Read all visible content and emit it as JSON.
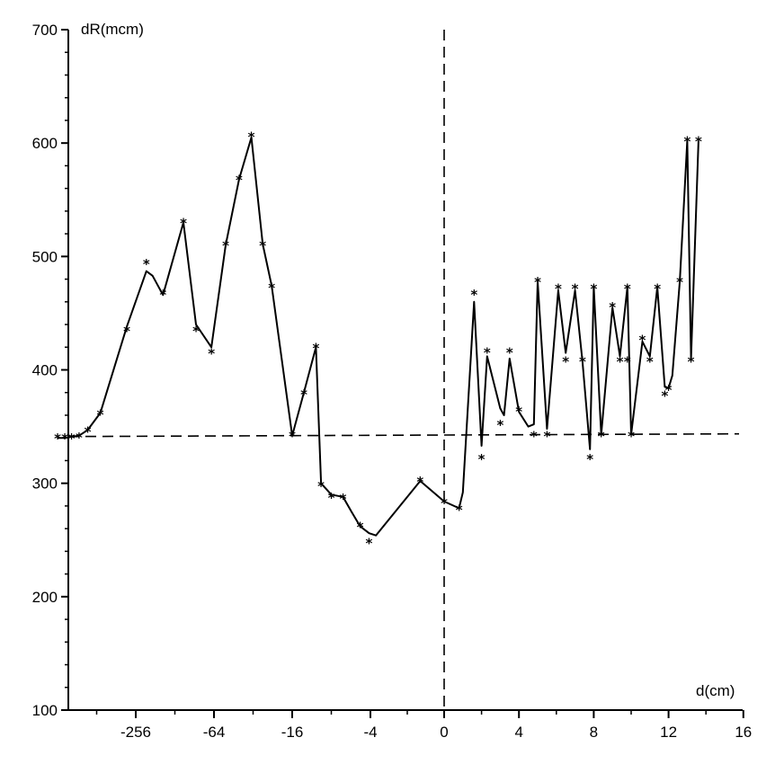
{
  "chart_data": {
    "type": "line",
    "ylabel": "dR(mcm)",
    "xlabel": "d(cm)",
    "ylim": [
      100,
      700
    ],
    "yticks": [
      100,
      200,
      300,
      400,
      500,
      600,
      700
    ],
    "xticks": [
      "-256",
      "-64",
      "-16",
      "-4",
      "0",
      "4",
      "8",
      "12",
      "16"
    ],
    "xtick_values": [
      -256,
      -64,
      -16,
      -4,
      0,
      4,
      8,
      12,
      16
    ],
    "x_scale": "symmetric log (negative side logarithmic, positive side linear)",
    "grid": false,
    "reference_lines": {
      "horizontal_y": 342,
      "vertical_x": 0
    },
    "series": [
      {
        "marker": "*",
        "line_points": [
          [
            -1024,
            340
          ],
          [
            -900,
            340
          ],
          [
            -800,
            341
          ],
          [
            -700,
            342
          ],
          [
            -600,
            347
          ],
          [
            -480,
            362
          ],
          [
            -300,
            438
          ],
          [
            -212,
            487
          ],
          [
            -190,
            483
          ],
          [
            -158,
            466
          ],
          [
            -110,
            530
          ],
          [
            -88,
            440
          ],
          [
            -67,
            420
          ],
          [
            -52,
            510
          ],
          [
            -41,
            568
          ],
          [
            -33,
            605
          ],
          [
            -27,
            511
          ],
          [
            -23,
            474
          ],
          [
            -16,
            342
          ],
          [
            -13,
            380
          ],
          [
            -10.5,
            420
          ],
          [
            -9.6,
            300
          ],
          [
            -8,
            290
          ],
          [
            -6.5,
            288
          ],
          [
            -5.6,
            275
          ],
          [
            -4.8,
            262
          ],
          [
            -4.1,
            256
          ],
          [
            -3.7,
            254
          ],
          [
            -1.3,
            302
          ],
          [
            0,
            284
          ],
          [
            0.8,
            278
          ],
          [
            1.0,
            292
          ],
          [
            1.6,
            460
          ],
          [
            2.0,
            333
          ],
          [
            2.3,
            412
          ],
          [
            3.0,
            366
          ],
          [
            3.2,
            360
          ],
          [
            3.5,
            410
          ],
          [
            4.0,
            363
          ],
          [
            4.5,
            350
          ],
          [
            4.8,
            352
          ],
          [
            5.0,
            478
          ],
          [
            5.5,
            348
          ],
          [
            6.1,
            470
          ],
          [
            6.5,
            415
          ],
          [
            7.0,
            470
          ],
          [
            7.4,
            407
          ],
          [
            7.8,
            330
          ],
          [
            8.0,
            473
          ],
          [
            8.4,
            343
          ],
          [
            9.0,
            455
          ],
          [
            9.4,
            412
          ],
          [
            9.8,
            473
          ],
          [
            10.0,
            343
          ],
          [
            10.6,
            425
          ],
          [
            11.0,
            412
          ],
          [
            11.4,
            473
          ],
          [
            11.8,
            385
          ],
          [
            12.0,
            384
          ],
          [
            12.2,
            395
          ],
          [
            12.6,
            478
          ],
          [
            13.0,
            602
          ],
          [
            13.2,
            410
          ],
          [
            13.6,
            602
          ]
        ],
        "marker_points": [
          [
            -1024,
            340
          ],
          [
            -900,
            340
          ],
          [
            -800,
            340
          ],
          [
            -700,
            341
          ],
          [
            -600,
            346
          ],
          [
            -480,
            361
          ],
          [
            -300,
            435
          ],
          [
            -212,
            494
          ],
          [
            -158,
            467
          ],
          [
            -110,
            530
          ],
          [
            -88,
            435
          ],
          [
            -67,
            415
          ],
          [
            -52,
            510
          ],
          [
            -41,
            568
          ],
          [
            -33,
            606
          ],
          [
            -27,
            510
          ],
          [
            -23,
            473
          ],
          [
            -16,
            342
          ],
          [
            -13,
            379
          ],
          [
            -10.5,
            420
          ],
          [
            -9.6,
            298
          ],
          [
            -8,
            288
          ],
          [
            -6.5,
            287
          ],
          [
            -4.8,
            262
          ],
          [
            -4.1,
            248
          ],
          [
            -1.3,
            302
          ],
          [
            0,
            283
          ],
          [
            0.8,
            277
          ],
          [
            1.6,
            467
          ],
          [
            2.0,
            322
          ],
          [
            2.3,
            416
          ],
          [
            3.0,
            352
          ],
          [
            3.5,
            416
          ],
          [
            4.0,
            364
          ],
          [
            4.8,
            342
          ],
          [
            5.0,
            478
          ],
          [
            5.5,
            342
          ],
          [
            6.1,
            472
          ],
          [
            6.5,
            408
          ],
          [
            7.0,
            472
          ],
          [
            7.4,
            408
          ],
          [
            7.8,
            322
          ],
          [
            8.0,
            472
          ],
          [
            8.4,
            342
          ],
          [
            9.0,
            456
          ],
          [
            9.4,
            408
          ],
          [
            9.8,
            472
          ],
          [
            9.8,
            408
          ],
          [
            10.0,
            342
          ],
          [
            10.6,
            427
          ],
          [
            11.0,
            408
          ],
          [
            11.4,
            472
          ],
          [
            11.8,
            378
          ],
          [
            12.0,
            383
          ],
          [
            12.6,
            478
          ],
          [
            13.0,
            602
          ],
          [
            13.2,
            408
          ],
          [
            13.6,
            602
          ]
        ]
      }
    ]
  }
}
